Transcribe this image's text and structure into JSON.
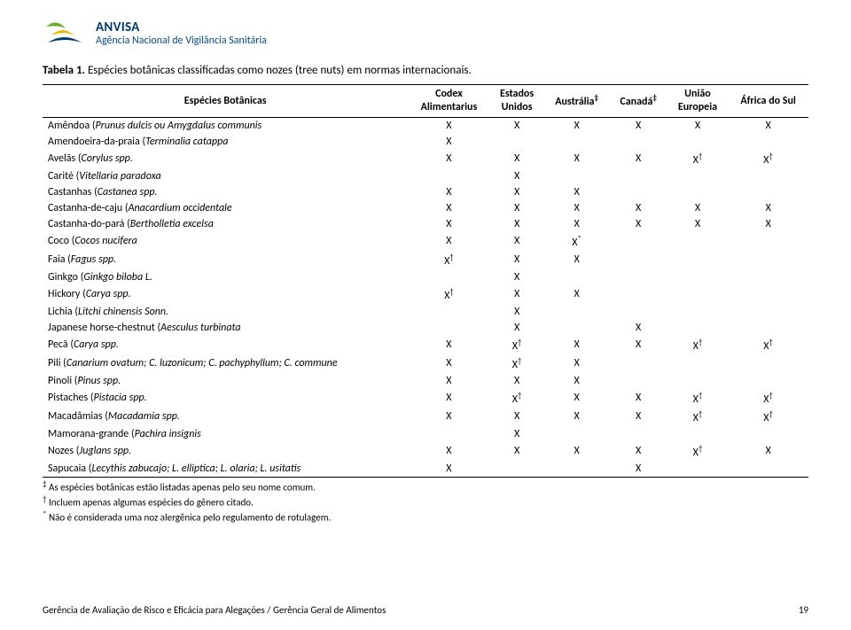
{
  "header": {
    "org_name": "ANVISA",
    "org_sub": "Agência Nacional de Vigilância Sanitária"
  },
  "caption_prefix": "Tabela 1.",
  "caption_text": " Espécies botânicas classificadas como nozes (tree nuts) em normas internacionais.",
  "columns": [
    "Espécies Botânicas",
    "Codex Alimentarius",
    "Estados Unidos",
    "Austrália‡",
    "Canadá‡",
    "União Europeia",
    "África do Sul"
  ],
  "rows": [
    {
      "name": "Amêndoa (Prunus dulcis ou Amygdalus communis)",
      "marks": [
        "X",
        "X",
        "X",
        "X",
        "X",
        "X"
      ]
    },
    {
      "name": "Amendoeira-da-praia (Terminalia catappa)",
      "marks": [
        "X",
        "",
        "",
        "",
        "",
        ""
      ]
    },
    {
      "name": "Avelãs (Corylus spp.)",
      "marks": [
        "X",
        "X",
        "X",
        "X",
        "X†",
        "X†"
      ]
    },
    {
      "name": "Carité (Vitellaria paradoxa)",
      "marks": [
        "",
        "X",
        "",
        "",
        "",
        ""
      ]
    },
    {
      "name": "Castanhas (Castanea spp.)",
      "marks": [
        "X",
        "X",
        "X",
        "",
        "",
        ""
      ]
    },
    {
      "name": "Castanha-de-caju (Anacardium occidentale)",
      "marks": [
        "X",
        "X",
        "X",
        "X",
        "X",
        "X"
      ]
    },
    {
      "name": "Castanha-do-pará (Bertholletia excelsa)",
      "marks": [
        "X",
        "X",
        "X",
        "X",
        "X",
        "X"
      ]
    },
    {
      "name": "Coco (Cocos nucifera)",
      "marks": [
        "X",
        "X",
        "X*",
        "",
        "",
        ""
      ]
    },
    {
      "name": "Faia (Fagus spp.)",
      "marks": [
        "X†",
        "X",
        "X",
        "",
        "",
        ""
      ]
    },
    {
      "name": "Ginkgo (Ginkgo biloba L.)",
      "marks": [
        "",
        "X",
        "",
        "",
        "",
        ""
      ]
    },
    {
      "name": "Hickory (Carya spp.)",
      "marks": [
        "X†",
        "X",
        "X",
        "",
        "",
        ""
      ]
    },
    {
      "name": "Lichia (Litchi chinensis Sonn.)",
      "marks": [
        "",
        "X",
        "",
        "",
        "",
        ""
      ]
    },
    {
      "name": "Japanese horse-chestnut (Aesculus turbinata)",
      "marks": [
        "",
        "X",
        "",
        "X",
        "",
        ""
      ]
    },
    {
      "name": "Pecã (Carya spp.)",
      "marks": [
        "X",
        "X†",
        "X",
        "X",
        "X†",
        "X†"
      ]
    },
    {
      "name": "Pili (Canarium ovatum; C. luzonicum; C. pachyphyllum; C. commune)",
      "marks": [
        "X",
        "X†",
        "X",
        "",
        "",
        ""
      ]
    },
    {
      "name": "Pinoli (Pinus spp.)",
      "marks": [
        "X",
        "X",
        "X",
        "",
        "",
        ""
      ]
    },
    {
      "name": "Pistaches (Pistacia spp.)",
      "marks": [
        "X",
        "X†",
        "X",
        "X",
        "X†",
        "X†"
      ]
    },
    {
      "name": "Macadâmias (Macadamia spp.)",
      "marks": [
        "X",
        "X",
        "X",
        "X",
        "X†",
        "X†"
      ]
    },
    {
      "name": "Mamorana-grande (Pachira insignis)",
      "marks": [
        "",
        "X",
        "",
        "",
        "",
        ""
      ]
    },
    {
      "name": "Nozes (Juglans spp.)",
      "marks": [
        "X",
        "X",
        "X",
        "X",
        "X†",
        "X"
      ]
    },
    {
      "name": "Sapucaia (Lecythis zabucajo; L. elliptica; L. olaria; L. usitatis)",
      "marks": [
        "X",
        "",
        "",
        "X",
        "",
        ""
      ]
    }
  ],
  "footnotes": [
    {
      "sym": "‡",
      "text": " As espécies botânicas estão listadas apenas pelo seu nome comum."
    },
    {
      "sym": "†",
      "text": " Incluem apenas algumas espécies do gênero citado."
    },
    {
      "sym": "*",
      "text": " Não é considerada uma noz alergênica pelo regulamento de rotulagem."
    }
  ],
  "footer": {
    "left": "Gerência de Avaliação de Risco e Eficácia para Alegações / Gerência Geral de Alimentos",
    "page": "19"
  },
  "colors": {
    "brand_blue": "#003a6b",
    "header_blue": "#004a84",
    "icon_green": "#6aa92a",
    "icon_yellow": "#f2b600"
  }
}
